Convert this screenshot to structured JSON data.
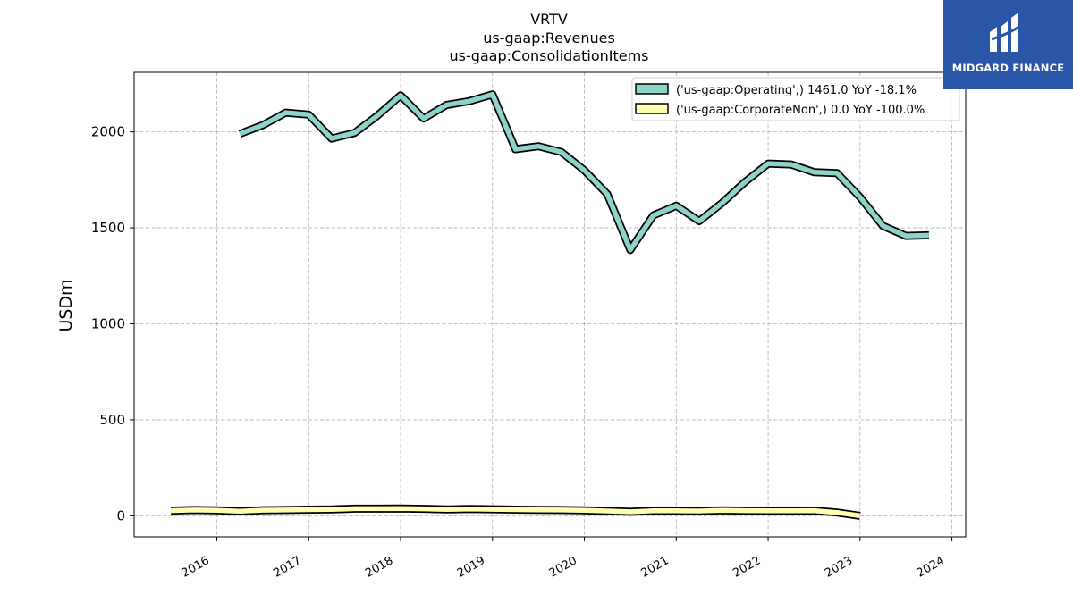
{
  "chart_data": {
    "type": "line",
    "title_lines": [
      "VRTV",
      "us-gaap:Revenues",
      "us-gaap:ConsolidationItems"
    ],
    "ylabel": "USDm",
    "xlim": [
      2015.1,
      2024.15
    ],
    "ylim": [
      -110,
      2310
    ],
    "yticks": [
      0,
      500,
      1000,
      1500,
      2000
    ],
    "xticks": [
      2016,
      2017,
      2018,
      2019,
      2020,
      2021,
      2022,
      2023,
      2024
    ],
    "grid": true,
    "legend_position": "top-right",
    "series": [
      {
        "name": "('us-gaap:Operating',) 1461.0 YoY -18.1%",
        "color": "#8dd3c7",
        "x": [
          2016.25,
          2016.5,
          2016.75,
          2017.0,
          2017.25,
          2017.5,
          2017.75,
          2018.0,
          2018.25,
          2018.5,
          2018.75,
          2019.0,
          2019.25,
          2019.5,
          2019.75,
          2020.0,
          2020.25,
          2020.5,
          2020.75,
          2021.0,
          2021.25,
          2021.5,
          2021.75,
          2022.0,
          2022.25,
          2022.5,
          2022.75,
          2023.0,
          2023.25,
          2023.5,
          2023.75
        ],
        "y": [
          1990,
          2035,
          2100,
          2090,
          1965,
          1995,
          2085,
          2190,
          2070,
          2140,
          2160,
          2195,
          1910,
          1925,
          1895,
          1800,
          1675,
          1385,
          1565,
          1615,
          1535,
          1630,
          1740,
          1835,
          1830,
          1790,
          1785,
          1660,
          1510,
          1458,
          1461
        ]
      },
      {
        "name": "('us-gaap:CorporateNon',) 0.0 YoY -100.0%",
        "color": "#ffffb3",
        "x": [
          2015.5,
          2015.75,
          2016.0,
          2016.25,
          2016.5,
          2016.75,
          2017.0,
          2017.25,
          2017.5,
          2017.75,
          2018.0,
          2018.25,
          2018.5,
          2018.75,
          2019.0,
          2019.25,
          2019.5,
          2019.75,
          2020.0,
          2020.25,
          2020.5,
          2020.75,
          2021.0,
          2021.25,
          2021.5,
          2021.75,
          2022.0,
          2022.25,
          2022.5,
          2022.75,
          2023.0
        ],
        "y": [
          27,
          30,
          28,
          24,
          29,
          30,
          32,
          33,
          37,
          37,
          38,
          36,
          33,
          35,
          34,
          32,
          31,
          30,
          28,
          25,
          21,
          26,
          26,
          25,
          28,
          27,
          26,
          26,
          27,
          17,
          0
        ]
      }
    ]
  },
  "logo": {
    "name": "MIDGARD FINANCE"
  }
}
